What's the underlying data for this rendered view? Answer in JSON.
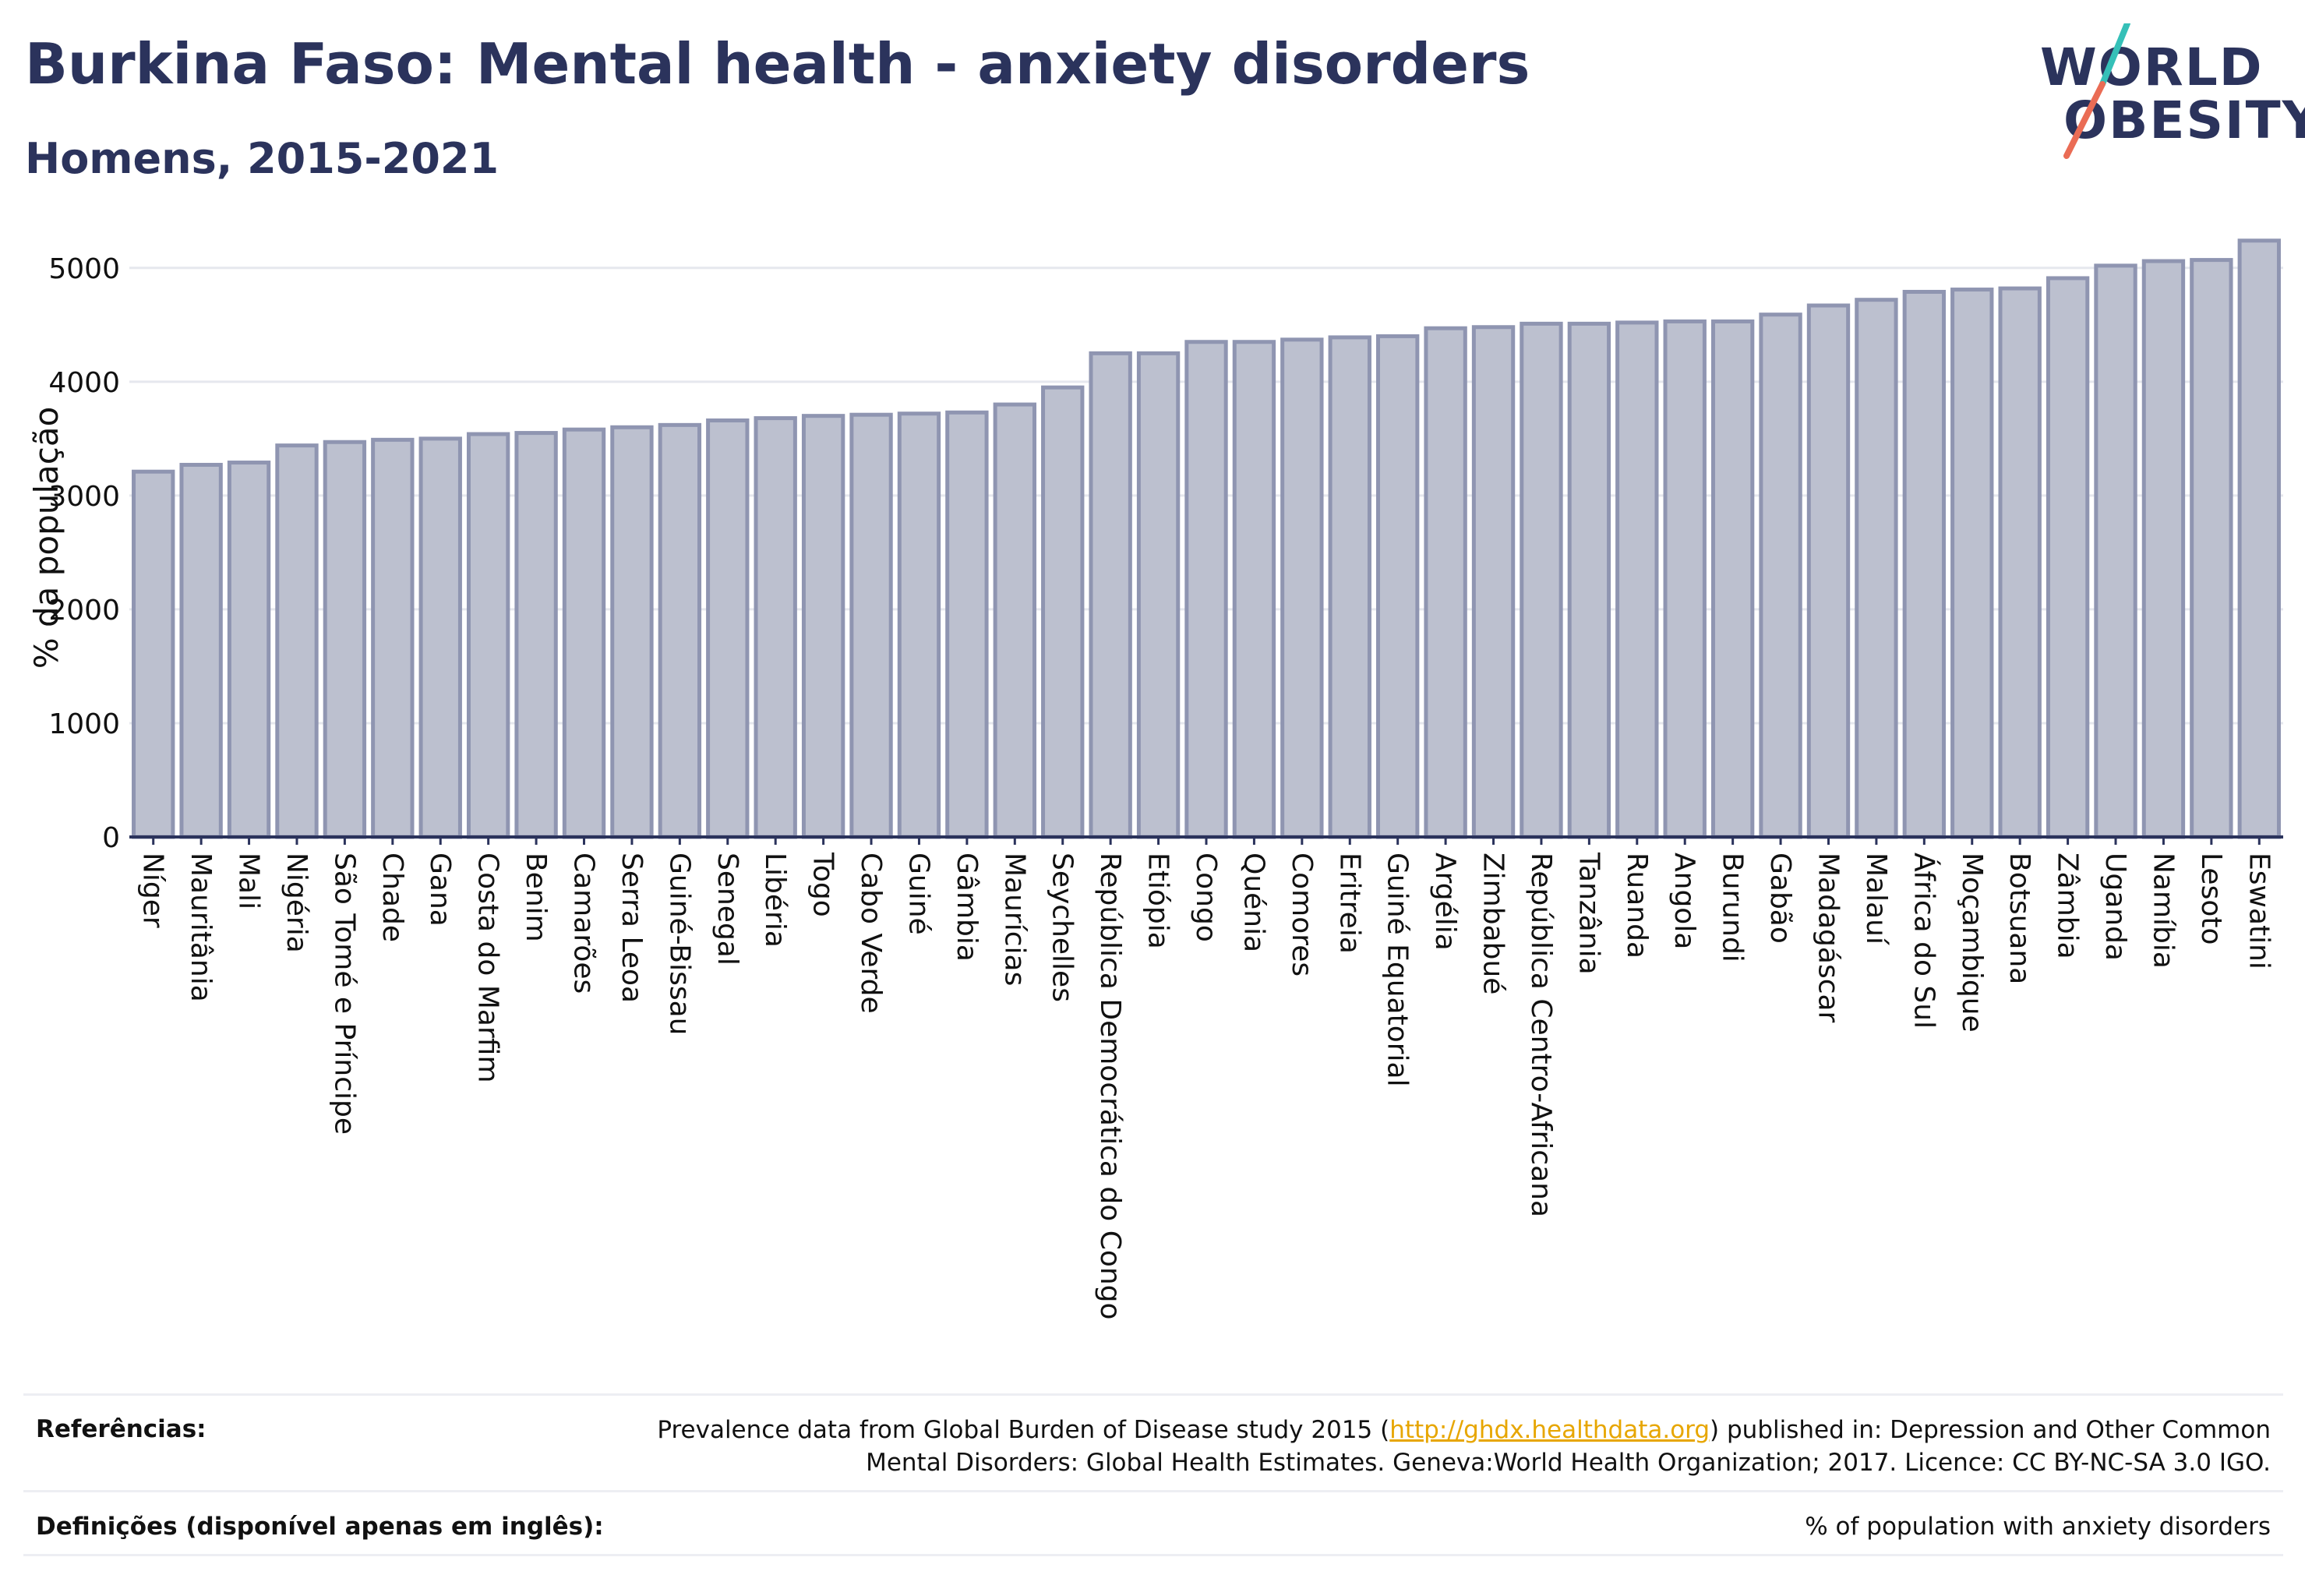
{
  "header": {
    "title": "Burkina Faso: Mental health - anxiety disorders",
    "subtitle": "Homens, 2015-2021"
  },
  "logo": {
    "line1": "WORLD",
    "line2": "OBESITY",
    "stroke_colors": [
      "#35c0b8",
      "#ea6c55"
    ]
  },
  "colors": {
    "bar_fill": "#bcc0cf",
    "bar_stroke": "#8f95b1",
    "title": "#2b335c",
    "link": "#e7a600"
  },
  "chart_data": {
    "type": "bar",
    "title": "Burkina Faso: Mental health - anxiety disorders",
    "subtitle": "Homens, 2015-2021",
    "xlabel": "",
    "ylabel": "% da população",
    "ylim": [
      0,
      5300
    ],
    "yticks": [
      0,
      1000,
      2000,
      3000,
      4000,
      5000
    ],
    "grid": true,
    "legend": "none",
    "categories": [
      "Níger",
      "Mauritânia",
      "Mali",
      "Nigéria",
      "São Tomé e Príncipe",
      "Chade",
      "Gana",
      "Costa do Marfim",
      "Benim",
      "Camarões",
      "Serra Leoa",
      "Guiné-Bissau",
      "Senegal",
      "Libéria",
      "Togo",
      "Cabo Verde",
      "Guiné",
      "Gâmbia",
      "Maurícias",
      "Seychelles",
      "República Democrática do Congo",
      "Etiópia",
      "Congo",
      "Quénia",
      "Comores",
      "Eritreia",
      "Guiné Equatorial",
      "Argélia",
      "Zimbabué",
      "República Centro-Africana",
      "Tanzânia",
      "Ruanda",
      "Angola",
      "Burundi",
      "Gabão",
      "Madagáscar",
      "Malauí",
      "África do Sul",
      "Moçambique",
      "Botsuana",
      "Zâmbia",
      "Uganda",
      "Namíbia",
      "Lesoto",
      "Eswatini"
    ],
    "values": [
      3210,
      3270,
      3290,
      3440,
      3470,
      3490,
      3500,
      3540,
      3550,
      3580,
      3600,
      3620,
      3660,
      3680,
      3700,
      3710,
      3720,
      3730,
      3800,
      3950,
      4250,
      4250,
      4350,
      4350,
      4370,
      4390,
      4400,
      4470,
      4480,
      4510,
      4510,
      4520,
      4530,
      4530,
      4590,
      4670,
      4720,
      4790,
      4810,
      4820,
      4910,
      5020,
      5060,
      5070,
      5240
    ]
  },
  "footer": {
    "references_label": "Referências:",
    "references_text_before": "Prevalence data from Global Burden of Disease study 2015 (",
    "references_link": "http://ghdx.healthdata.org",
    "references_text_after": ") published in: Depression and Other Common Mental Disorders: Global Health Estimates. Geneva:World Health Organization; 2017. Licence: CC BY-NC-SA 3.0 IGO.",
    "definitions_label": "Definições (disponível apenas em inglês):",
    "definitions_text": "% of population with anxiety disorders"
  }
}
